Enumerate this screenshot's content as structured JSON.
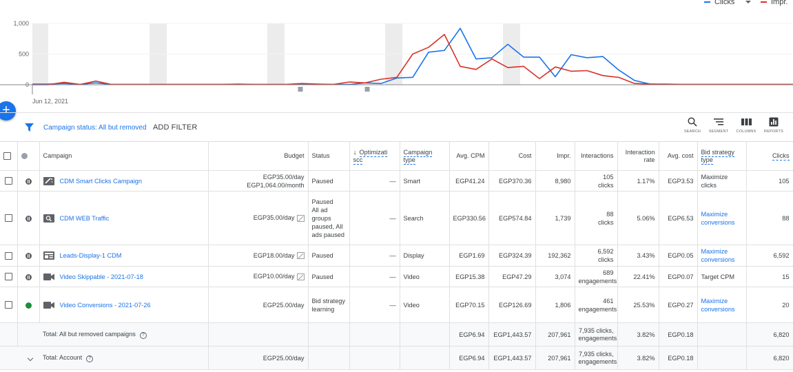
{
  "chart_data": {
    "type": "line",
    "legend": [
      "Clicks",
      "Impr."
    ],
    "legend_position": "top-right",
    "y_ticks": [
      "1,000",
      "500",
      "0"
    ],
    "ylim": [
      0,
      1000
    ],
    "x_start_label": "Jun 12, 2021",
    "series": [
      {
        "name": "Clicks",
        "color": "#1a73e8",
        "values": [
          10,
          10,
          20,
          5,
          30,
          5,
          5,
          5,
          5,
          5,
          5,
          5,
          5,
          5,
          5,
          5,
          5,
          5,
          5,
          5,
          5,
          30,
          20,
          110,
          120,
          530,
          560,
          920,
          420,
          440,
          660,
          450,
          450,
          130,
          490,
          440,
          460,
          240,
          70,
          10,
          10,
          5,
          5,
          5,
          5,
          5,
          5,
          5,
          5
        ]
      },
      {
        "name": "Impr.",
        "color": "#d93025",
        "values": [
          0,
          0,
          40,
          5,
          60,
          5,
          5,
          5,
          5,
          5,
          5,
          5,
          5,
          10,
          5,
          5,
          5,
          20,
          10,
          5,
          45,
          30,
          90,
          120,
          500,
          610,
          820,
          300,
          250,
          420,
          280,
          300,
          100,
          290,
          220,
          230,
          150,
          120,
          20,
          10,
          5,
          5,
          5,
          5,
          5,
          5,
          5,
          5,
          5
        ]
      }
    ]
  },
  "fab": {
    "icon": "plus-icon",
    "label": "+"
  },
  "filter": {
    "label": "Campaign status: All but removed",
    "add_filter": "ADD FILTER"
  },
  "tools": [
    {
      "label": "SEARCH",
      "icon": "search-icon"
    },
    {
      "label": "SEGMENT",
      "icon": "segment-icon"
    },
    {
      "label": "COLUMNS",
      "icon": "columns-icon"
    },
    {
      "label": "REPORTS",
      "icon": "reports-icon"
    }
  ],
  "headers": {
    "campaign": "Campaign",
    "budget": "Budget",
    "status": "Status",
    "opt": "Optimizati scc",
    "ctype": "Campaign type",
    "cpm": "Avg. CPM",
    "cost": "Cost",
    "impr": "Impr.",
    "interactions": "Interactions",
    "irate": "Interaction rate",
    "acost": "Avg. cost",
    "bid": "Bid strategy type",
    "clicks": "Clicks"
  },
  "rows": [
    {
      "name": "CDM Smart Clicks Campaign",
      "icon": "smart-icon",
      "budget": "EGP35.00/day",
      "budget2": "EGP1,064.00/month",
      "status": "Paused",
      "opt": "—",
      "ctype": "Smart",
      "cpm": "EGP41.24",
      "cost": "EGP370.36",
      "impr": "8,980",
      "inter": "105",
      "inter2": "clicks",
      "irate": "1.17%",
      "acost": "EGP3.53",
      "bid": "Maximize clicks",
      "bid_link": false,
      "clicks": "105"
    },
    {
      "name": "CDM WEB Traffic",
      "icon": "search-campaign-icon",
      "budget": "EGP35.00/day",
      "budget2": "",
      "status": "Paused",
      "status2": "All ad groups paused, All ads paused",
      "opt": "—",
      "ctype": "Search",
      "cpm": "EGP330.56",
      "cost": "EGP574.84",
      "impr": "1,739",
      "inter": "88",
      "inter2": "clicks",
      "irate": "5.06%",
      "acost": "EGP6.53",
      "bid": "Maximize conversions",
      "bid_link": true,
      "clicks": "88"
    },
    {
      "name": "Leads-Display-1 CDM",
      "icon": "display-icon",
      "budget": "EGP18.00/day",
      "budget2": "",
      "status": "Paused",
      "opt": "—",
      "ctype": "Display",
      "cpm": "EGP1.69",
      "cost": "EGP324.39",
      "impr": "192,362",
      "inter": "6,592",
      "inter2": "clicks",
      "irate": "3.43%",
      "acost": "EGP0.05",
      "bid": "Maximize conversions",
      "bid_link": true,
      "clicks": "6,592"
    },
    {
      "name": "Video Skippable - 2021-07-18",
      "icon": "video-icon",
      "budget": "EGP10.00/day",
      "budget2": "",
      "status": "Paused",
      "opt": "—",
      "ctype": "Video",
      "cpm": "EGP15.38",
      "cost": "EGP47.29",
      "impr": "3,074",
      "inter": "689",
      "inter2": "engagements",
      "irate": "22.41%",
      "acost": "EGP0.07",
      "bid": "Target CPM",
      "bid_link": false,
      "clicks": "15"
    },
    {
      "name": "Video Conversions - 2021-07-26",
      "icon": "video-icon",
      "budget": "EGP25.00/day",
      "budget2": "",
      "status": "Bid strategy learning",
      "opt": "—",
      "ctype": "Video",
      "cpm": "EGP70.15",
      "cost": "EGP126.69",
      "impr": "1,806",
      "inter": "461",
      "inter2": "engagements",
      "irate": "25.53%",
      "acost": "EGP0.27",
      "bid": "Maximize conversions",
      "bid_link": true,
      "clicks": "20"
    }
  ],
  "totals": [
    {
      "label": "Total: All but removed campaigns",
      "budget": "",
      "cpm": "EGP6.94",
      "cost": "EGP1,443.57",
      "impr": "207,961",
      "inter": "7,935 clicks, engagements",
      "irate": "3.82%",
      "acost": "EGP0.18",
      "clicks": "6,820"
    },
    {
      "label": "Total: Account",
      "budget": "EGP25.00/day",
      "cpm": "EGP6.94",
      "cost": "EGP1,443.57",
      "impr": "207,961",
      "inter": "7,935 clicks, engagements",
      "irate": "3.82%",
      "acost": "EGP0.18",
      "clicks": "6,820"
    }
  ]
}
